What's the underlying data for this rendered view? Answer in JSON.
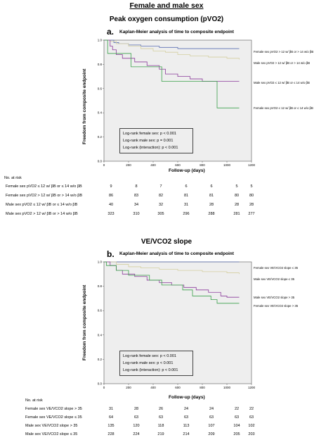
{
  "main_title": "Female and male sex",
  "chart_data": [
    {
      "type": "line",
      "title": "Peak oxygen consumption (pVO2)",
      "panel_letter": "a.",
      "subtitle": "Kaplan-Meier analysis of time to composite endpoint",
      "xlabel": "Follow-up (days)",
      "ylabel": "Freedom from composite endpoint",
      "xlim": [
        0,
        1200
      ],
      "ylim": [
        0,
        1.0
      ],
      "x_ticks": [
        0,
        200,
        400,
        600,
        800,
        1000,
        1200
      ],
      "y_ticks": [
        "0.0",
        "0.2",
        "0.4",
        "0.6",
        "0.8",
        "1.0"
      ],
      "legend_box": [
        "Log-rank female sex: p < 0.001",
        "Log-rank male sex: p = 0.001",
        "Log-rank (interaction): p < 0.001"
      ],
      "series": [
        {
          "name": "Female sex pVO2 > 12 w/ βB or > 14 w/o βB",
          "color": "#5b6fb3",
          "points": [
            [
              0,
              1.0
            ],
            [
              60,
              1.0
            ],
            [
              80,
              0.98
            ],
            [
              120,
              0.97
            ],
            [
              200,
              0.96
            ],
            [
              300,
              0.95
            ],
            [
              450,
              0.94
            ],
            [
              600,
              0.93
            ],
            [
              800,
              0.93
            ],
            [
              1100,
              0.93
            ]
          ]
        },
        {
          "name": "Male sex pVO2 > 12 w/ βB or > 14 w/o βB",
          "color": "#d4cfa0",
          "points": [
            [
              0,
              1.0
            ],
            [
              50,
              0.99
            ],
            [
              100,
              0.97
            ],
            [
              200,
              0.95
            ],
            [
              300,
              0.93
            ],
            [
              400,
              0.91
            ],
            [
              500,
              0.9
            ],
            [
              600,
              0.88
            ],
            [
              700,
              0.87
            ],
            [
              850,
              0.86
            ],
            [
              1000,
              0.85
            ],
            [
              1100,
              0.84
            ]
          ]
        },
        {
          "name": "Male sex pVO2 ≤ 12 w/ βB or ≤ 14 w/o βB",
          "color": "#8a3a9a",
          "points": [
            [
              0,
              1.0
            ],
            [
              50,
              0.95
            ],
            [
              70,
              0.92
            ],
            [
              100,
              0.88
            ],
            [
              150,
              0.85
            ],
            [
              250,
              0.82
            ],
            [
              350,
              0.79
            ],
            [
              450,
              0.76
            ],
            [
              500,
              0.72
            ],
            [
              600,
              0.7
            ],
            [
              700,
              0.68
            ],
            [
              800,
              0.66
            ],
            [
              1100,
              0.66
            ]
          ]
        },
        {
          "name": "Female sex pVO2 ≤ 12 w/ βB or ≤ 14 w/o βB",
          "color": "#3aa04a",
          "points": [
            [
              0,
              1.0
            ],
            [
              30,
              0.89
            ],
            [
              200,
              0.89
            ],
            [
              220,
              0.78
            ],
            [
              450,
              0.78
            ],
            [
              470,
              0.66
            ],
            [
              900,
              0.66
            ],
            [
              920,
              0.44
            ],
            [
              1100,
              0.44
            ]
          ]
        }
      ],
      "risk_table": {
        "header": "No. at risk",
        "rows": [
          {
            "label": "Female sex pVO2 ≤ 12 w/ βB or ≤ 14 w/o βB",
            "values": [
              "9",
              "8",
              "7",
              "6",
              "6",
              "5",
              "5"
            ]
          },
          {
            "label": "Female sex pVO2 > 12 w/ βB or > 14 w/o βB",
            "values": [
              "86",
              "83",
              "82",
              "81",
              "81",
              "80",
              "80"
            ]
          },
          {
            "label": "Male sex pVO2 ≤ 12 w/ βB or ≤ 14 w/o βB",
            "values": [
              "40",
              "34",
              "32",
              "31",
              "28",
              "28",
              "28"
            ]
          },
          {
            "label": "Male sex pVO2 > 12 w/ βB or > 14 w/o βB",
            "values": [
              "323",
              "310",
              "305",
              "296",
              "288",
              "281",
              "277"
            ]
          }
        ]
      }
    },
    {
      "type": "line",
      "title": "VE/VCO2 slope",
      "panel_letter": "b.",
      "subtitle": "Kaplan-Meier analysis of time to composite endpoint",
      "xlabel": "Follow-up (days)",
      "ylabel": "Freedom from composite endpoint",
      "xlim": [
        0,
        1200
      ],
      "ylim": [
        0,
        1.0
      ],
      "x_ticks": [
        0,
        200,
        400,
        600,
        800,
        1000,
        1200
      ],
      "y_ticks": [
        "0.0",
        "0.2",
        "0.4",
        "0.6",
        "0.8",
        "1.0"
      ],
      "legend_box": [
        "Log-rank female sex: p < 0.001",
        "Log-rank male sex: p < 0.001",
        "Log-rank (interaction): p < 0.001"
      ],
      "series": [
        {
          "name": "Female sex VE/VCO2 slope ≤ 35",
          "color": "#5b6fb3",
          "points": [
            [
              0,
              1.0
            ],
            [
              1100,
              1.0
            ]
          ]
        },
        {
          "name": "Male sex VE/VCO2 slope ≤ 35",
          "color": "#d4cfa0",
          "points": [
            [
              0,
              1.0
            ],
            [
              100,
              0.98
            ],
            [
              200,
              0.96
            ],
            [
              300,
              0.95
            ],
            [
              450,
              0.94
            ],
            [
              600,
              0.93
            ],
            [
              800,
              0.92
            ],
            [
              1000,
              0.91
            ],
            [
              1100,
              0.9
            ]
          ]
        },
        {
          "name": "Male sex VE/VCO2 slope > 35",
          "color": "#8a3a9a",
          "points": [
            [
              0,
              1.0
            ],
            [
              50,
              0.97
            ],
            [
              100,
              0.93
            ],
            [
              150,
              0.9
            ],
            [
              250,
              0.88
            ],
            [
              350,
              0.85
            ],
            [
              450,
              0.83
            ],
            [
              550,
              0.81
            ],
            [
              650,
              0.79
            ],
            [
              750,
              0.77
            ],
            [
              850,
              0.75
            ],
            [
              950,
              0.72
            ],
            [
              1000,
              0.71
            ],
            [
              1100,
              0.71
            ]
          ]
        },
        {
          "name": "Female sex VE/VCO2 slope > 35",
          "color": "#3aa04a",
          "points": [
            [
              0,
              1.0
            ],
            [
              20,
              0.97
            ],
            [
              80,
              0.97
            ],
            [
              100,
              0.93
            ],
            [
              180,
              0.93
            ],
            [
              200,
              0.89
            ],
            [
              350,
              0.89
            ],
            [
              370,
              0.85
            ],
            [
              450,
              0.85
            ],
            [
              470,
              0.81
            ],
            [
              620,
              0.81
            ],
            [
              640,
              0.77
            ],
            [
              700,
              0.77
            ],
            [
              720,
              0.72
            ],
            [
              850,
              0.72
            ],
            [
              870,
              0.69
            ],
            [
              900,
              0.69
            ],
            [
              920,
              0.66
            ],
            [
              1100,
              0.66
            ]
          ]
        }
      ],
      "risk_table": {
        "header": "No. at risk",
        "rows": [
          {
            "label": "Female sex VE/VCO2 slope > 35",
            "values": [
              "31",
              "28",
              "26",
              "24",
              "24",
              "22",
              "22"
            ]
          },
          {
            "label": "Female sex VE/VCO2 slope ≤ 35",
            "values": [
              "64",
              "63",
              "63",
              "63",
              "63",
              "63",
              "63"
            ]
          },
          {
            "label": "Male sex VE/VCO2 slope > 35",
            "values": [
              "135",
              "120",
              "118",
              "113",
              "107",
              "104",
              "102"
            ]
          },
          {
            "label": "Male sex VE/VCO2 slope ≤ 35",
            "values": [
              "228",
              "224",
              "219",
              "214",
              "209",
              "205",
              "203"
            ]
          }
        ]
      }
    }
  ]
}
